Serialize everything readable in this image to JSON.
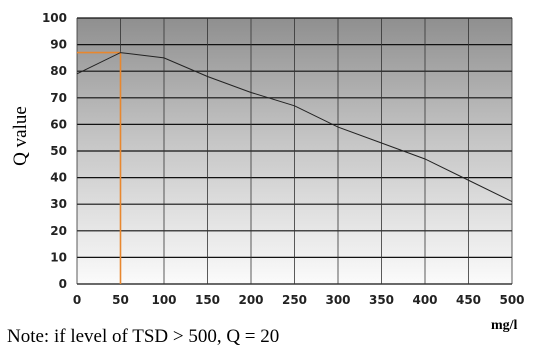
{
  "chart_data": {
    "type": "line",
    "ylabel": "Q value",
    "xlabel": "",
    "x_unit": "mg/l",
    "xlim": [
      0,
      500
    ],
    "ylim": [
      0,
      100
    ],
    "x_ticks": [
      0,
      50,
      100,
      150,
      200,
      250,
      300,
      350,
      400,
      450,
      500
    ],
    "y_ticks": [
      0,
      10,
      20,
      30,
      40,
      50,
      60,
      70,
      80,
      90,
      100
    ],
    "grid": true,
    "background": "gray gradient",
    "series": [
      {
        "color": "#222222",
        "x": [
          0,
          50,
          100,
          150,
          200,
          250,
          300,
          350,
          400,
          450,
          500
        ],
        "y": [
          79,
          87,
          85,
          78,
          72,
          67,
          59,
          53,
          47,
          39,
          31
        ]
      }
    ],
    "annotation": {
      "type": "guide-lines",
      "color": "#e8872e",
      "x": 50,
      "y": 87
    },
    "note": "Note: if level of TSD > 500, Q = 20"
  }
}
